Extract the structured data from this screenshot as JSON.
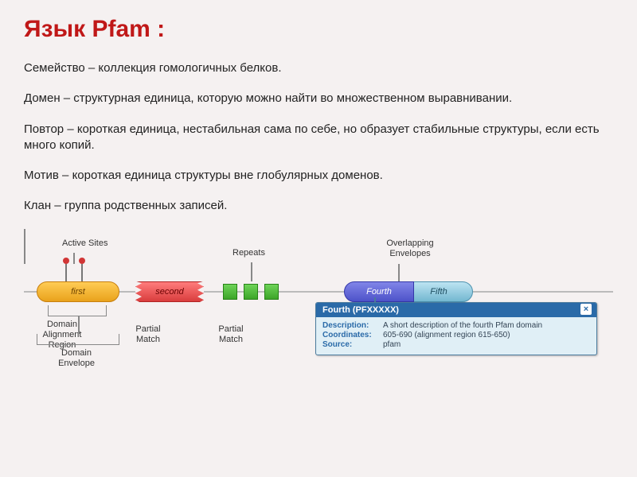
{
  "title": "Язык Pfam :",
  "definitions": [
    "Семейство –  коллекция гомологичных белков.",
    "Домен – структурная единица, которую можно найти во множественном выравнивании.",
    "Повтор – короткая единица,  нестабильная сама по себе, но образует стабильные структуры, если есть много копий.",
    "Мотив – короткая единица структуры вне глобулярных доменов.",
    "Клан – группа родственных записей."
  ],
  "diagram": {
    "top_labels": {
      "active_sites": "Active Sites",
      "repeats": "Repeats",
      "overlapping": "Overlapping Envelopes"
    },
    "domains": {
      "first": "first",
      "second": "second",
      "fourth": "Fourth",
      "fifth": "Fifth"
    },
    "bottom_labels": {
      "alignment_region": "Domain Alignment Region",
      "envelope": "Domain Envelope",
      "partial_match_1": "Partial Match",
      "partial_match_2": "Partial Match"
    },
    "colors": {
      "first": "#e9a21b",
      "second": "#d93d3d",
      "repeat": "#3ca528",
      "fourth": "#4d52c9",
      "fifth": "#73b7d0",
      "line": "#bbbbbb",
      "background": "#f5f1f1",
      "title": "#c01818",
      "tooltip_header": "#2a6aa8",
      "tooltip_bg": "#e0eff6"
    },
    "repeat_count": 3,
    "active_site_count": 2
  },
  "tooltip": {
    "header": "Fourth (PFXXXXX)",
    "close": "×",
    "rows": {
      "description_k": "Description:",
      "description_v": "A short description of the fourth Pfam domain",
      "coordinates_k": "Coordinates:",
      "coordinates_v": "605-690 (alignment region 615-650)",
      "source_k": "Source:",
      "source_v": "pfam"
    }
  }
}
